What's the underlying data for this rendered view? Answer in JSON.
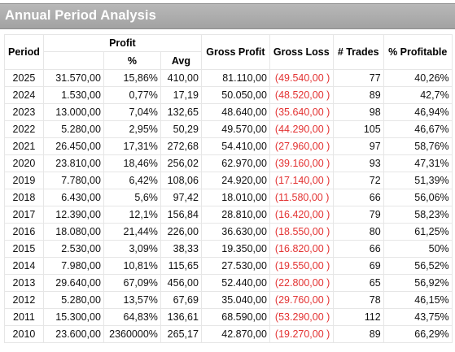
{
  "title": "Annual Period Analysis",
  "headers": {
    "period": "Period",
    "profit": "Profit",
    "pct": "%",
    "avg": "Avg",
    "gross_profit": "Gross Profit",
    "gross_loss": "Gross Loss",
    "trades": "# Trades",
    "pct_profitable": "% Profitable"
  },
  "colors": {
    "title_bar": "#a8a8a8",
    "loss_text": "#e33333"
  },
  "rows": [
    {
      "period": "2025",
      "profit": "31.570,00",
      "pct": "15,86%",
      "avg": "410,00",
      "gross_profit": "81.110,00",
      "gross_loss": "(49.540,00 )",
      "trades": "77",
      "pct_profitable": "40,26%"
    },
    {
      "period": "2024",
      "profit": "1.530,00",
      "pct": "0,77%",
      "avg": "17,19",
      "gross_profit": "50.050,00",
      "gross_loss": "(48.520,00 )",
      "trades": "89",
      "pct_profitable": "42,7%"
    },
    {
      "period": "2023",
      "profit": "13.000,00",
      "pct": "7,04%",
      "avg": "132,65",
      "gross_profit": "48.640,00",
      "gross_loss": "(35.640,00 )",
      "trades": "98",
      "pct_profitable": "46,94%"
    },
    {
      "period": "2022",
      "profit": "5.280,00",
      "pct": "2,95%",
      "avg": "50,29",
      "gross_profit": "49.570,00",
      "gross_loss": "(44.290,00 )",
      "trades": "105",
      "pct_profitable": "46,67%"
    },
    {
      "period": "2021",
      "profit": "26.450,00",
      "pct": "17,31%",
      "avg": "272,68",
      "gross_profit": "54.410,00",
      "gross_loss": "(27.960,00 )",
      "trades": "97",
      "pct_profitable": "58,76%"
    },
    {
      "period": "2020",
      "profit": "23.810,00",
      "pct": "18,46%",
      "avg": "256,02",
      "gross_profit": "62.970,00",
      "gross_loss": "(39.160,00 )",
      "trades": "93",
      "pct_profitable": "47,31%"
    },
    {
      "period": "2019",
      "profit": "7.780,00",
      "pct": "6,42%",
      "avg": "108,06",
      "gross_profit": "24.920,00",
      "gross_loss": "(17.140,00 )",
      "trades": "72",
      "pct_profitable": "51,39%"
    },
    {
      "period": "2018",
      "profit": "6.430,00",
      "pct": "5,6%",
      "avg": "97,42",
      "gross_profit": "18.010,00",
      "gross_loss": "(11.580,00 )",
      "trades": "66",
      "pct_profitable": "56,06%"
    },
    {
      "period": "2017",
      "profit": "12.390,00",
      "pct": "12,1%",
      "avg": "156,84",
      "gross_profit": "28.810,00",
      "gross_loss": "(16.420,00 )",
      "trades": "79",
      "pct_profitable": "58,23%"
    },
    {
      "period": "2016",
      "profit": "18.080,00",
      "pct": "21,44%",
      "avg": "226,00",
      "gross_profit": "36.630,00",
      "gross_loss": "(18.550,00 )",
      "trades": "80",
      "pct_profitable": "61,25%"
    },
    {
      "period": "2015",
      "profit": "2.530,00",
      "pct": "3,09%",
      "avg": "38,33",
      "gross_profit": "19.350,00",
      "gross_loss": "(16.820,00 )",
      "trades": "66",
      "pct_profitable": "50%"
    },
    {
      "period": "2014",
      "profit": "7.980,00",
      "pct": "10,81%",
      "avg": "115,65",
      "gross_profit": "27.530,00",
      "gross_loss": "(19.550,00 )",
      "trades": "69",
      "pct_profitable": "56,52%"
    },
    {
      "period": "2013",
      "profit": "29.640,00",
      "pct": "67,09%",
      "avg": "456,00",
      "gross_profit": "52.440,00",
      "gross_loss": "(22.800,00 )",
      "trades": "65",
      "pct_profitable": "56,92%"
    },
    {
      "period": "2012",
      "profit": "5.280,00",
      "pct": "13,57%",
      "avg": "67,69",
      "gross_profit": "35.040,00",
      "gross_loss": "(29.760,00 )",
      "trades": "78",
      "pct_profitable": "46,15%"
    },
    {
      "period": "2011",
      "profit": "15.300,00",
      "pct": "64,83%",
      "avg": "136,61",
      "gross_profit": "68.590,00",
      "gross_loss": "(53.290,00 )",
      "trades": "112",
      "pct_profitable": "43,75%"
    },
    {
      "period": "2010",
      "profit": "23.600,00",
      "pct": "2360000%",
      "avg": "265,17",
      "gross_profit": "42.870,00",
      "gross_loss": "(19.270,00 )",
      "trades": "89",
      "pct_profitable": "66,29%"
    }
  ]
}
